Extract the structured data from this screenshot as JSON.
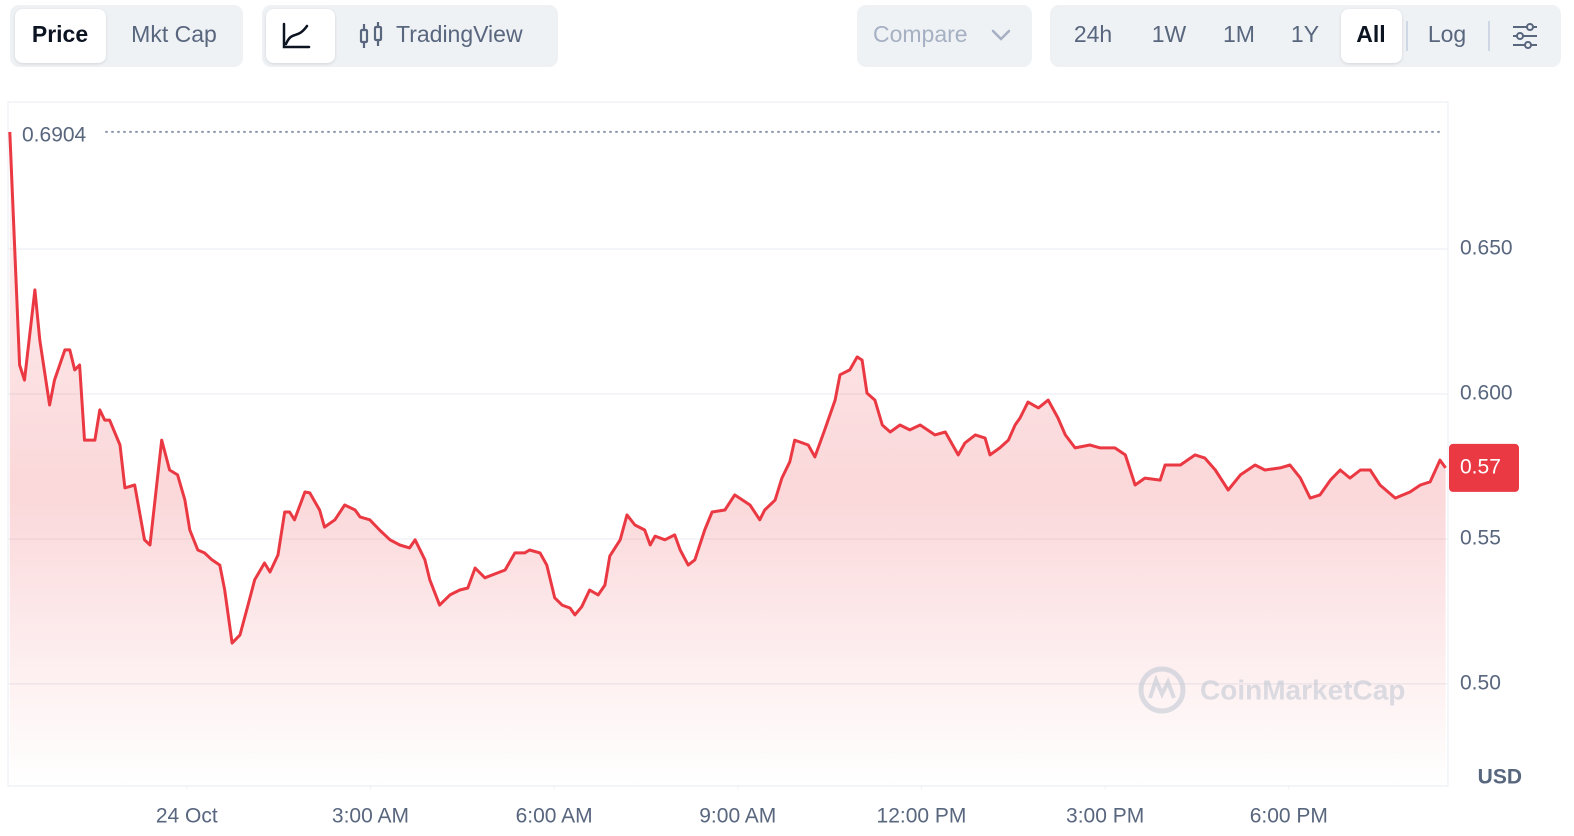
{
  "toolbar": {
    "metric_tabs": [
      "Price",
      "Mkt Cap"
    ],
    "view_tab": "TradingView",
    "compare": "Compare",
    "ranges": [
      "24h",
      "1W",
      "1M",
      "1Y",
      "All",
      "Log"
    ]
  },
  "chart_data": {
    "type": "line",
    "color": "#ea3943",
    "currency": "USD",
    "watermark": "CoinMarketCap",
    "max_price": 0.6904,
    "last_price": {
      "value": 0.5745,
      "label": "0.57"
    },
    "xlim": [
      -2.92,
      20.6
    ],
    "xticks": [
      {
        "value": 0,
        "label": "24 Oct"
      },
      {
        "value": 3,
        "label": "3:00 AM"
      },
      {
        "value": 6,
        "label": "6:00 AM"
      },
      {
        "value": 9,
        "label": "9:00 AM"
      },
      {
        "value": 12,
        "label": "12:00 PM"
      },
      {
        "value": 15,
        "label": "3:00 PM"
      },
      {
        "value": 18,
        "label": "6:00 PM"
      }
    ],
    "ylim": [
      0.4648,
      0.7007
    ],
    "yticks": [
      {
        "value": 0.5,
        "label": "0.50"
      },
      0.55,
      {
        "value": 0.6,
        "label": "0.600"
      },
      {
        "value": 0.65,
        "label": "0.650"
      }
    ],
    "grid": true,
    "x": [
      -2.89,
      -2.73,
      -2.65,
      -2.48,
      -2.4,
      -2.24,
      -2.16,
      -1.99,
      -1.91,
      -1.83,
      -1.75,
      -1.67,
      -1.5,
      -1.42,
      -1.34,
      -1.26,
      -1.09,
      -1.01,
      -0.85,
      -0.69,
      -0.6,
      -0.41,
      -0.28,
      -0.15,
      -0.03,
      0.05,
      0.18,
      0.29,
      0.41,
      0.54,
      0.62,
      0.74,
      0.87,
      1.0,
      1.11,
      1.27,
      1.36,
      1.49,
      1.6,
      1.68,
      1.76,
      1.93,
      2.01,
      2.17,
      2.25,
      2.42,
      2.58,
      2.75,
      2.83,
      2.99,
      3.15,
      3.32,
      3.48,
      3.64,
      3.73,
      3.89,
      3.97,
      4.13,
      4.3,
      4.46,
      4.59,
      4.71,
      4.87,
      5.03,
      5.2,
      5.36,
      5.52,
      5.6,
      5.77,
      5.88,
      6.01,
      6.13,
      6.26,
      6.34,
      6.45,
      6.58,
      6.72,
      6.83,
      6.91,
      7.08,
      7.19,
      7.32,
      7.48,
      7.57,
      7.65,
      7.81,
      7.97,
      8.06,
      8.19,
      8.3,
      8.46,
      8.58,
      8.79,
      8.95,
      9.2,
      9.36,
      9.44,
      9.61,
      9.72,
      9.85,
      9.93,
      10.15,
      10.26,
      10.42,
      10.59,
      10.67,
      10.83,
      10.95,
      11.03,
      11.11,
      11.24,
      11.36,
      11.49,
      11.65,
      11.81,
      11.98,
      12.22,
      12.39,
      12.6,
      12.71,
      12.88,
      13.04,
      13.12,
      13.28,
      13.42,
      13.53,
      13.61,
      13.74,
      13.91,
      14.07,
      14.23,
      14.35,
      14.51,
      14.75,
      14.92,
      15.16,
      15.33,
      15.49,
      15.65,
      15.9,
      15.98,
      16.23,
      16.47,
      16.63,
      16.8,
      17.01,
      17.21,
      17.45,
      17.61,
      17.86,
      18.02,
      18.19,
      18.35,
      18.51,
      18.68,
      18.84,
      19.0,
      19.17,
      19.33,
      19.49,
      19.74,
      19.98,
      20.15,
      20.31,
      20.47,
      20.56
    ],
    "values": [
      0.6904,
      0.61,
      0.6048,
      0.6359,
      0.6186,
      0.5962,
      0.6048,
      0.6152,
      0.6152,
      0.6083,
      0.61,
      0.5841,
      0.5841,
      0.5945,
      0.591,
      0.591,
      0.5824,
      0.5676,
      0.5686,
      0.5497,
      0.5479,
      0.5841,
      0.5738,
      0.5721,
      0.5634,
      0.5531,
      0.5462,
      0.5452,
      0.5428,
      0.541,
      0.5324,
      0.5141,
      0.5169,
      0.5272,
      0.5359,
      0.5417,
      0.5386,
      0.5445,
      0.5593,
      0.5593,
      0.5566,
      0.5662,
      0.5659,
      0.56,
      0.5541,
      0.5566,
      0.5617,
      0.56,
      0.5576,
      0.5566,
      0.5531,
      0.5497,
      0.5479,
      0.5469,
      0.5497,
      0.5428,
      0.5359,
      0.5272,
      0.5307,
      0.5324,
      0.5331,
      0.54,
      0.5366,
      0.5379,
      0.5393,
      0.5452,
      0.5452,
      0.5462,
      0.5452,
      0.541,
      0.5297,
      0.5272,
      0.5262,
      0.5238,
      0.5266,
      0.5324,
      0.5307,
      0.5341,
      0.5441,
      0.5497,
      0.5583,
      0.5548,
      0.5531,
      0.5479,
      0.551,
      0.5497,
      0.5514,
      0.5462,
      0.541,
      0.5428,
      0.5531,
      0.5593,
      0.56,
      0.5652,
      0.5617,
      0.5566,
      0.56,
      0.5634,
      0.571,
      0.5766,
      0.5841,
      0.5824,
      0.5783,
      0.5876,
      0.5979,
      0.6066,
      0.6083,
      0.6128,
      0.6117,
      0.6003,
      0.5979,
      0.5893,
      0.5869,
      0.5893,
      0.5876,
      0.5893,
      0.5859,
      0.5869,
      0.579,
      0.5831,
      0.5859,
      0.5848,
      0.579,
      0.5814,
      0.5841,
      0.5893,
      0.5917,
      0.5972,
      0.5952,
      0.5979,
      0.5917,
      0.5859,
      0.5814,
      0.5824,
      0.5814,
      0.5814,
      0.579,
      0.5686,
      0.571,
      0.5703,
      0.5755,
      0.5755,
      0.579,
      0.5779,
      0.5738,
      0.5669,
      0.5721,
      0.5755,
      0.5738,
      0.5745,
      0.5755,
      0.571,
      0.5641,
      0.5652,
      0.5703,
      0.5738,
      0.571,
      0.5738,
      0.5738,
      0.5686,
      0.5641,
      0.5662,
      0.5686,
      0.5697,
      0.5772,
      0.5745
    ]
  }
}
